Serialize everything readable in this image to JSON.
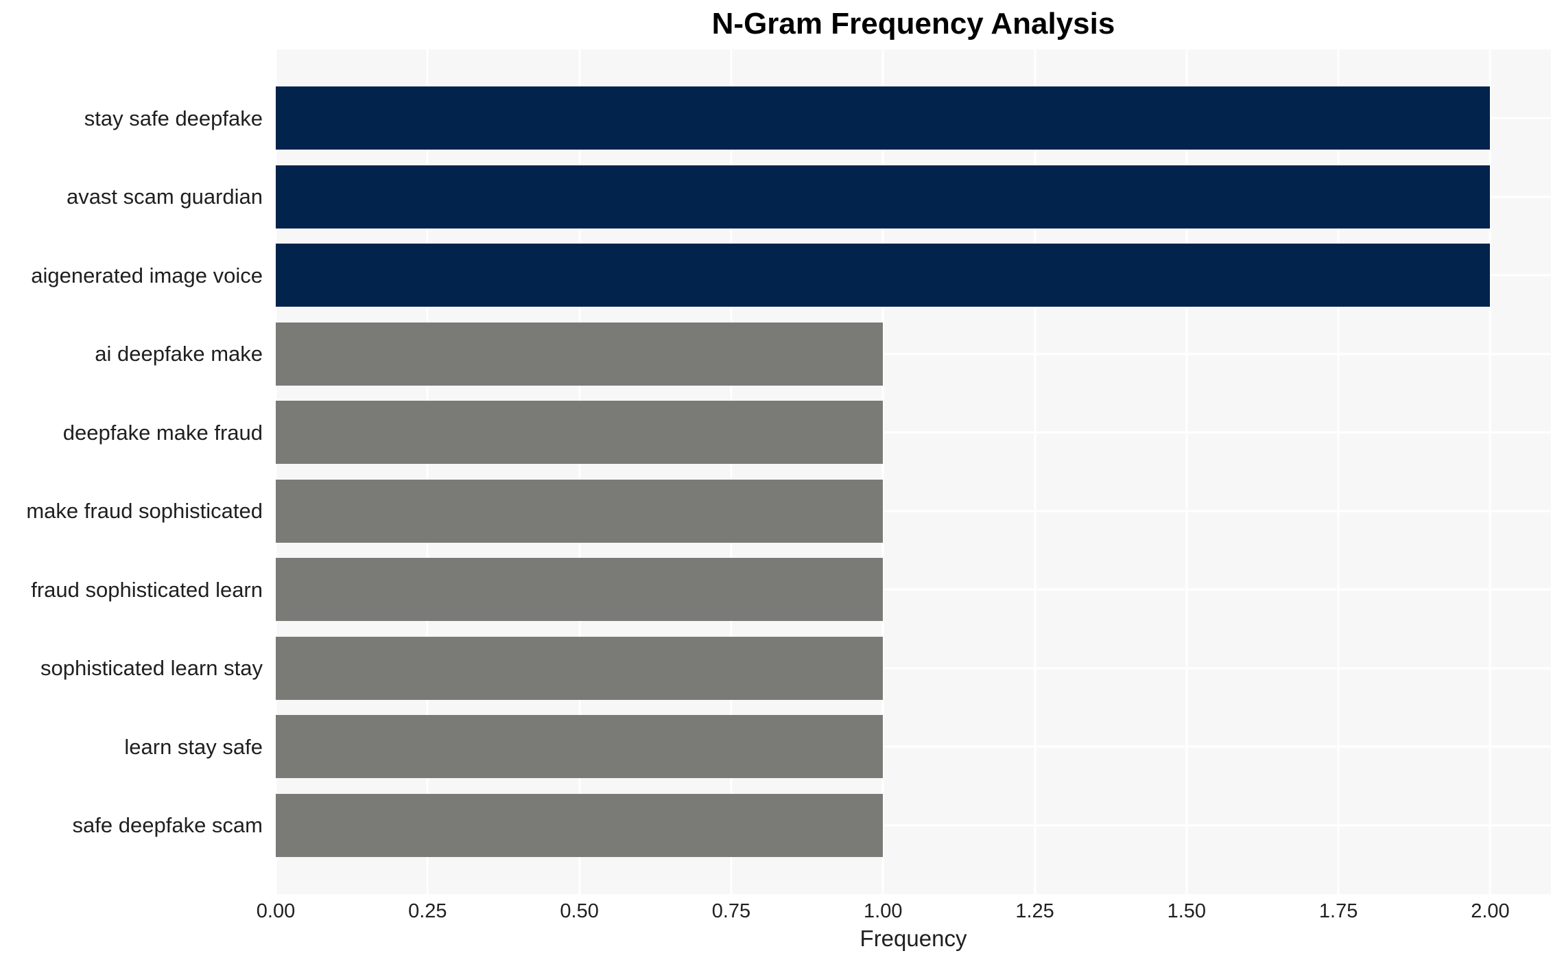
{
  "chart_data": {
    "type": "bar",
    "orientation": "horizontal",
    "title": "N-Gram Frequency Analysis",
    "xlabel": "Frequency",
    "ylabel": "",
    "categories": [
      "stay safe deepfake",
      "avast scam guardian",
      "aigenerated image voice",
      "ai deepfake make",
      "deepfake make fraud",
      "make fraud sophisticated",
      "fraud sophisticated learn",
      "sophisticated learn stay",
      "learn stay safe",
      "safe deepfake scam"
    ],
    "values": [
      2.0,
      2.0,
      2.0,
      1.0,
      1.0,
      1.0,
      1.0,
      1.0,
      1.0,
      1.0
    ],
    "bar_colors": [
      "#02234c",
      "#02234c",
      "#02234c",
      "#7a7a76",
      "#7a7a76",
      "#7a7a76",
      "#7a7a76",
      "#7a7a76",
      "#7a7a76",
      "#7a7a76"
    ],
    "xlim": [
      0,
      2.1
    ],
    "xticks": [
      "0.00",
      "0.25",
      "0.50",
      "0.75",
      "1.00",
      "1.25",
      "1.50",
      "1.75",
      "2.00"
    ],
    "xtick_values": [
      0,
      0.25,
      0.5,
      0.75,
      1.0,
      1.25,
      1.5,
      1.75,
      2.0
    ],
    "legend": "none",
    "grid": "on",
    "colors": {
      "high_bar": "#02234c",
      "low_bar": "#7a7a76",
      "plot_background": "#f7f7f7",
      "gridline": "#ffffff",
      "text": "#1f1f1f",
      "title_text": "#000000",
      "figure_background": "#ffffff"
    }
  }
}
